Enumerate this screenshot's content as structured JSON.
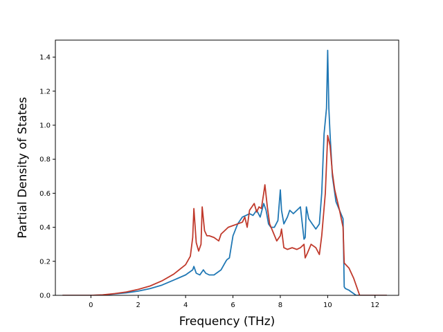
{
  "chart_data": {
    "type": "line",
    "title": "",
    "xlabel": "Frequency (THz)",
    "ylabel": "Partial Density of States",
    "xlim": [
      -1.5,
      13.0
    ],
    "ylim": [
      0.0,
      1.5
    ],
    "xticks": [
      0,
      2,
      4,
      6,
      8,
      10,
      12
    ],
    "xtick_labels": [
      "0",
      "2",
      "4",
      "6",
      "8",
      "10",
      "12"
    ],
    "yticks": [
      0.0,
      0.2,
      0.4,
      0.6,
      0.8,
      1.0,
      1.2,
      1.4
    ],
    "ytick_labels": [
      "0.0",
      "0.2",
      "0.4",
      "0.6",
      "0.8",
      "1.0",
      "1.2",
      "1.4"
    ],
    "grid": false,
    "legend": "none",
    "series": [
      {
        "color": "#1f77b4",
        "x": [
          -1.2,
          -0.5,
          0,
          0.5,
          1.0,
          1.5,
          2.0,
          2.5,
          3.0,
          3.5,
          4.0,
          4.3,
          4.35,
          4.45,
          4.6,
          4.75,
          4.85,
          5.0,
          5.2,
          5.5,
          5.7,
          5.75,
          5.85,
          6.0,
          6.2,
          6.4,
          6.55,
          6.7,
          6.85,
          7.0,
          7.15,
          7.3,
          7.4,
          7.5,
          7.6,
          7.75,
          7.9,
          8.0,
          8.05,
          8.15,
          8.3,
          8.4,
          8.55,
          8.7,
          8.85,
          9.0,
          9.05,
          9.1,
          9.2,
          9.35,
          9.5,
          9.65,
          9.75,
          9.85,
          9.95,
          10.0,
          10.05,
          10.1,
          10.2,
          10.35,
          10.5,
          10.65,
          10.7,
          10.75,
          10.9,
          11.0,
          11.1,
          11.2,
          11.3,
          12.5
        ],
        "y": [
          0.0,
          0.0,
          0.0,
          0.002,
          0.008,
          0.015,
          0.025,
          0.04,
          0.06,
          0.09,
          0.12,
          0.15,
          0.17,
          0.13,
          0.12,
          0.15,
          0.13,
          0.12,
          0.12,
          0.15,
          0.2,
          0.21,
          0.22,
          0.35,
          0.42,
          0.46,
          0.47,
          0.48,
          0.47,
          0.5,
          0.46,
          0.54,
          0.5,
          0.42,
          0.4,
          0.4,
          0.44,
          0.62,
          0.5,
          0.42,
          0.46,
          0.5,
          0.48,
          0.5,
          0.52,
          0.33,
          0.34,
          0.52,
          0.45,
          0.42,
          0.39,
          0.42,
          0.6,
          0.95,
          1.1,
          1.44,
          1.1,
          0.95,
          0.7,
          0.55,
          0.5,
          0.45,
          0.05,
          0.04,
          0.03,
          0.02,
          0.01,
          0.0,
          0.0,
          0.0
        ]
      },
      {
        "color": "#c0392b",
        "x": [
          -1.2,
          -0.5,
          0,
          0.5,
          1.0,
          1.5,
          2.0,
          2.5,
          3.0,
          3.5,
          4.0,
          4.2,
          4.3,
          4.35,
          4.45,
          4.55,
          4.65,
          4.7,
          4.8,
          4.9,
          5.0,
          5.2,
          5.4,
          5.5,
          5.65,
          5.8,
          6.0,
          6.2,
          6.4,
          6.5,
          6.6,
          6.7,
          6.8,
          6.9,
          7.0,
          7.1,
          7.2,
          7.3,
          7.35,
          7.45,
          7.55,
          7.7,
          7.85,
          8.0,
          8.05,
          8.15,
          8.3,
          8.5,
          8.7,
          8.85,
          9.0,
          9.05,
          9.15,
          9.3,
          9.5,
          9.65,
          9.75,
          9.9,
          10.0,
          10.1,
          10.2,
          10.3,
          10.5,
          10.65,
          10.7,
          10.9,
          11.1,
          11.35,
          12.5
        ],
        "y": [
          0.0,
          0.0,
          0.0,
          0.003,
          0.01,
          0.02,
          0.035,
          0.055,
          0.085,
          0.125,
          0.18,
          0.23,
          0.34,
          0.51,
          0.31,
          0.26,
          0.3,
          0.52,
          0.38,
          0.35,
          0.35,
          0.34,
          0.32,
          0.36,
          0.38,
          0.4,
          0.41,
          0.42,
          0.43,
          0.46,
          0.4,
          0.5,
          0.52,
          0.54,
          0.49,
          0.52,
          0.51,
          0.6,
          0.65,
          0.52,
          0.42,
          0.37,
          0.32,
          0.35,
          0.39,
          0.28,
          0.27,
          0.28,
          0.27,
          0.28,
          0.3,
          0.22,
          0.25,
          0.3,
          0.28,
          0.24,
          0.35,
          0.6,
          0.94,
          0.88,
          0.72,
          0.62,
          0.5,
          0.4,
          0.19,
          0.16,
          0.1,
          0.0,
          0.0
        ]
      }
    ]
  }
}
